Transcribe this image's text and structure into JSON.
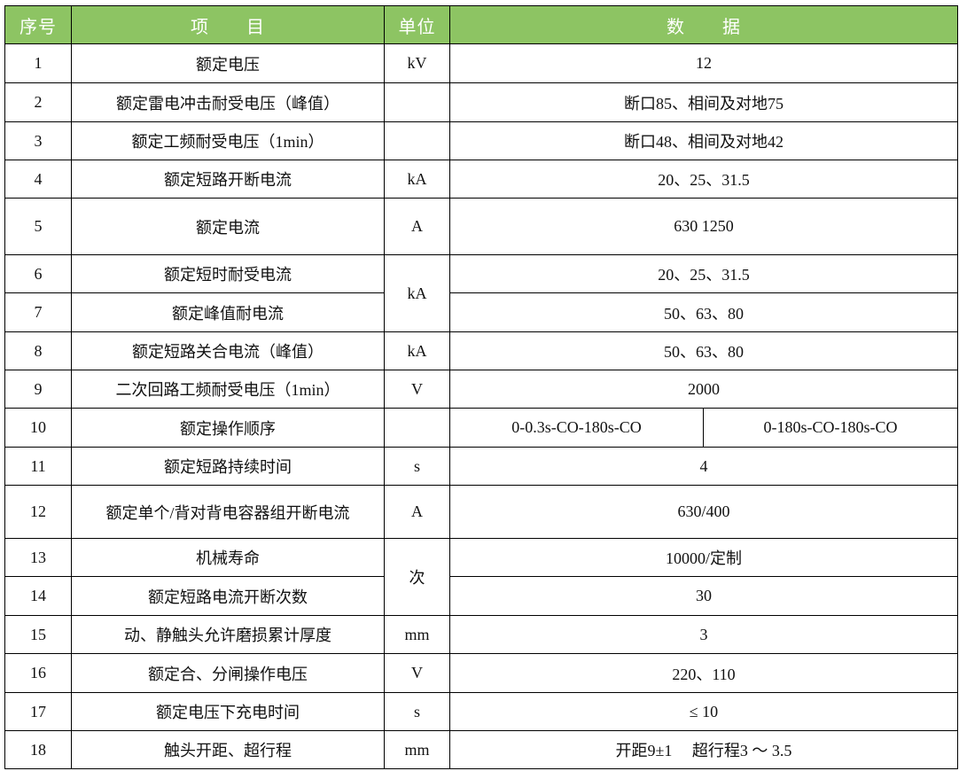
{
  "header_color": "#8dc463",
  "headers": {
    "no": "序号",
    "item": "项　　目",
    "unit": "单位",
    "data": "数　　据"
  },
  "rows": [
    {
      "no": "1",
      "item": "额定电压",
      "unit": "kV",
      "data": "12"
    },
    {
      "no": "2",
      "item": "额定雷电冲击耐受电压（峰值）",
      "unit": "",
      "data": "断口85、相间及对地75"
    },
    {
      "no": "3",
      "item": "额定工频耐受电压（1min）",
      "unit": "",
      "data": "断口48、相间及对地42"
    },
    {
      "no": "4",
      "item": "额定短路开断电流",
      "unit": "kA",
      "data": "20、25、31.5"
    },
    {
      "no": "5",
      "item": "额定电流",
      "unit": "A",
      "data": "630 1250"
    },
    {
      "no": "6",
      "item": "额定短时耐受电流",
      "unit": "kA",
      "data": "20、25、31.5"
    },
    {
      "no": "7",
      "item": "额定峰值耐电流",
      "data": "50、63、80"
    },
    {
      "no": "8",
      "item": "额定短路关合电流（峰值）",
      "unit": "kA",
      "data": "50、63、80"
    },
    {
      "no": "9",
      "item": "二次回路工频耐受电压（1min）",
      "unit": "V",
      "data": "2000"
    },
    {
      "no": "10",
      "item": "额定操作顺序",
      "unit": "",
      "data": [
        "0-0.3s-CO-180s-CO",
        "0-180s-CO-180s-CO"
      ]
    },
    {
      "no": "11",
      "item": "额定短路持续时间",
      "unit": "s",
      "data": "4"
    },
    {
      "no": "12",
      "item": "额定单个/背对背电容器组开断电流",
      "unit": "A",
      "data": "630/400"
    },
    {
      "no": "13",
      "item": "机械寿命",
      "unit": "次",
      "data": "10000/定制"
    },
    {
      "no": "14",
      "item": "额定短路电流开断次数",
      "data": "30"
    },
    {
      "no": "15",
      "item": "动、静触头允许磨损累计厚度",
      "unit": "mm",
      "data": "3"
    },
    {
      "no": "16",
      "item": "额定合、分闸操作电压",
      "unit": "V",
      "data": "220、110"
    },
    {
      "no": "17",
      "item": "额定电压下充电时间",
      "unit": "s",
      "data": "≤ 10"
    },
    {
      "no": "18",
      "item": "触头开距、超行程",
      "unit": "mm",
      "data": "开距9±1　 超行程3 ～ 3.5"
    }
  ]
}
